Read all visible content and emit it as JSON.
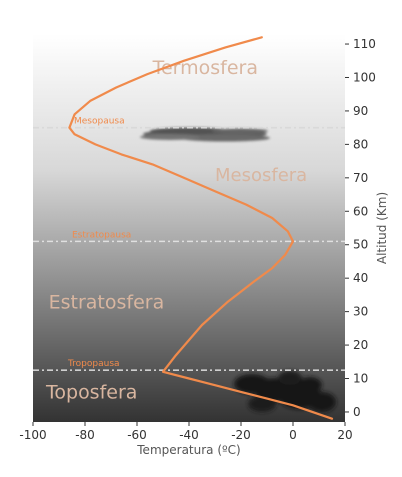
{
  "chart_data": {
    "type": "line",
    "xlabel": "Temperatura (ºC)",
    "ylabel": "Altitud (Km)",
    "xlim": [
      -100,
      20
    ],
    "ylim": [
      -3,
      113
    ],
    "x_ticks": [
      "-100",
      "-80",
      "-60",
      "-40",
      "-20",
      "0",
      "20"
    ],
    "y_ticks": [
      "0",
      "10",
      "20",
      "30",
      "40",
      "50",
      "60",
      "70",
      "80",
      "90",
      "100",
      "110"
    ],
    "line_color": "#f08a4b",
    "series": [
      {
        "x": [
          15,
          0,
          -10,
          -20,
          -30,
          -40,
          -50,
          -45,
          -35,
          -25,
          -15,
          -8,
          -3,
          0,
          -2,
          -8,
          -18,
          -30,
          -42,
          -54,
          -66,
          -76,
          -84,
          -86,
          -84,
          -78,
          -68,
          -56,
          -42,
          -26,
          -12
        ],
        "y": [
          -2,
          2,
          4,
          6,
          8,
          10,
          12,
          17,
          26,
          33,
          39,
          43,
          47,
          51,
          54,
          58,
          62,
          66,
          70,
          74,
          77,
          80,
          83,
          85,
          89,
          93,
          97,
          101,
          105,
          109,
          112
        ]
      }
    ],
    "layers": [
      {
        "label": "Termosfera",
        "x": -54,
        "y": 101
      },
      {
        "label": "Mesosfera",
        "x": -30,
        "y": 69
      },
      {
        "label": "Estratosfera",
        "x": -94,
        "y": 31
      },
      {
        "label": "Toposfera",
        "x": -95,
        "y": 4
      }
    ],
    "boundaries": [
      {
        "label": "Mesopausa",
        "altitude": 85,
        "color": "#d9d9d9",
        "label_color": "#f08a4b"
      },
      {
        "label": "Estratopausa",
        "altitude": 51,
        "color": "#e0e0e0",
        "label_color": "#f08a4b"
      },
      {
        "label": "Tropopausa",
        "altitude": 12.5,
        "color": "#d0d0d0",
        "label_color": "#f08a4b"
      }
    ],
    "background": {
      "top_color": "#ffffff",
      "bottom_color": "#333333"
    },
    "grid": false
  }
}
